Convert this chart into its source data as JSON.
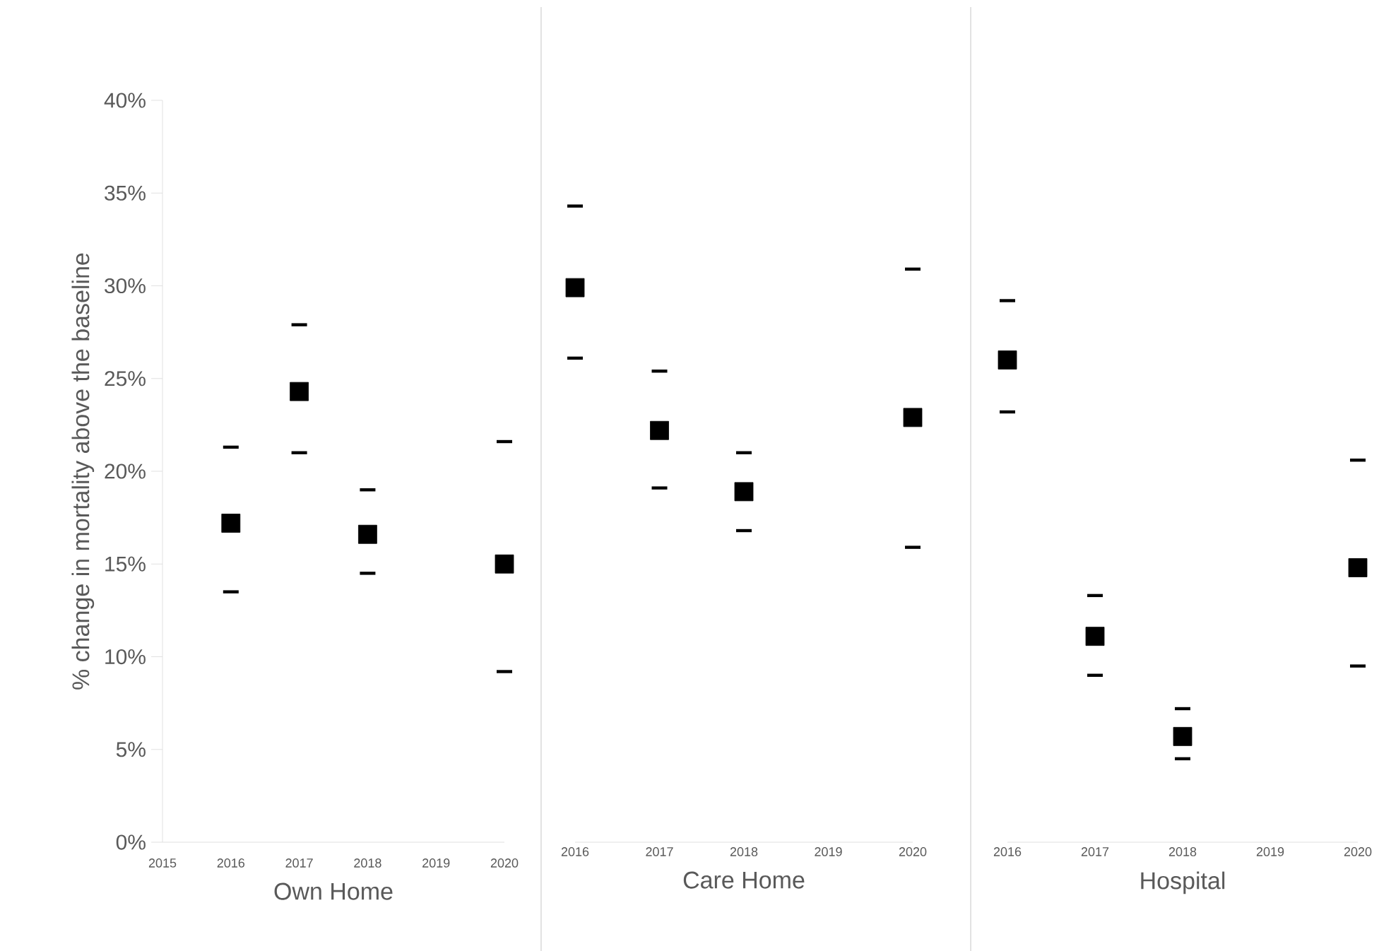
{
  "chart_data": [
    {
      "type": "scatter",
      "xlabel": "Own Home",
      "ylabel": "% change in mortality above the baseline",
      "marker": "square",
      "color": "#000000",
      "x": [
        2016,
        2017,
        2018,
        2020
      ],
      "values": [
        17.2,
        24.3,
        16.6,
        15.0
      ],
      "errors": [
        [
          13.5,
          21.3
        ],
        [
          21.0,
          27.9
        ],
        [
          14.5,
          19.0
        ],
        [
          9.2,
          21.6
        ]
      ],
      "xlim": [
        2015,
        2020
      ],
      "xticks": [
        2015,
        2016,
        2017,
        2018,
        2019,
        2020
      ],
      "ylim": [
        0,
        40
      ],
      "yticks": [
        {
          "value": 0,
          "label": "0%"
        },
        {
          "value": 5,
          "label": "5%"
        },
        {
          "value": 10,
          "label": "10%"
        },
        {
          "value": 15,
          "label": "15%"
        },
        {
          "value": 20,
          "label": "20%"
        },
        {
          "value": 25,
          "label": "25%"
        },
        {
          "value": 30,
          "label": "30%"
        },
        {
          "value": 35,
          "label": "35%"
        },
        {
          "value": 40,
          "label": "40%"
        }
      ]
    },
    {
      "type": "scatter",
      "xlabel": "Care Home",
      "marker": "square",
      "color": "#000000",
      "tick_labels": "x",
      "x": [
        2016,
        2017,
        2018,
        2020
      ],
      "values": [
        29.9,
        22.2,
        18.9,
        22.9
      ],
      "errors": [
        [
          26.1,
          34.3
        ],
        [
          19.1,
          25.4
        ],
        [
          16.8,
          21.0
        ],
        [
          15.9,
          30.9
        ]
      ],
      "xlim": [
        2016,
        2020
      ],
      "xticks": [
        2016,
        2017,
        2018,
        2019,
        2020
      ],
      "ylim": [
        0,
        40
      ]
    },
    {
      "type": "scatter",
      "xlabel": "Hospital",
      "marker": "square",
      "color": "#000000",
      "tick_labels": "x",
      "x": [
        2016,
        2017,
        2018,
        2020
      ],
      "values": [
        26.0,
        11.1,
        5.7,
        14.8
      ],
      "errors": [
        [
          23.2,
          29.2
        ],
        [
          9.0,
          13.3
        ],
        [
          4.5,
          7.2
        ],
        [
          9.5,
          20.6
        ]
      ],
      "xlim": [
        2016,
        2020
      ],
      "xticks": [
        2016,
        2017,
        2018,
        2019,
        2020
      ],
      "ylim": [
        0,
        40
      ]
    }
  ]
}
